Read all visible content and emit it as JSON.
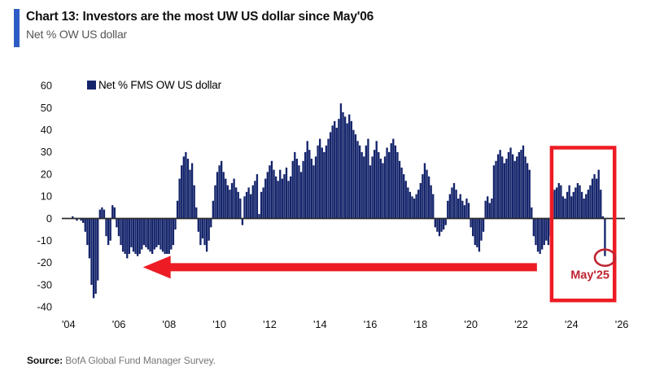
{
  "header": {
    "title": "Chart 13: Investors are the most UW US dollar since May'06",
    "subtitle": "Net % OW US dollar",
    "accent_color": "#2e5cc5"
  },
  "legend": {
    "label": "Net % FMS OW US dollar",
    "swatch_color": "#14246b"
  },
  "source": {
    "prefix": "Source:",
    "text": " BofA Global Fund Manager Survey."
  },
  "chart_data": {
    "type": "bar",
    "series_name": "Net % FMS OW US dollar",
    "frequency": "monthly",
    "start_month": "2004-01",
    "end_month": "2025-05",
    "ylim": [
      -40,
      60
    ],
    "y_ticks": [
      60,
      50,
      40,
      30,
      20,
      10,
      0,
      -10,
      -20,
      -30,
      -40
    ],
    "x_tick_labels": [
      "'04",
      "'06",
      "'08",
      "'10",
      "'12",
      "'14",
      "'16",
      "'18",
      "'20",
      "'22",
      "'24",
      "'26"
    ],
    "bar_color": "#14246b",
    "axis_line_color": "#2b2b2b",
    "values": [
      0,
      0,
      1,
      0,
      -1,
      0,
      -1,
      -2,
      -6,
      -12,
      -18,
      -30,
      -36,
      -34,
      -28,
      4,
      5,
      4,
      -8,
      -12,
      -10,
      6,
      5,
      -4,
      -8,
      -12,
      -15,
      -16,
      -18,
      -16,
      -13,
      -15,
      -16,
      -17,
      -16,
      -14,
      -12,
      -13,
      -14,
      -15,
      -16,
      -14,
      -13,
      -12,
      -14,
      -15,
      -16,
      -16,
      -16,
      -14,
      -12,
      -5,
      8,
      18,
      24,
      28,
      30,
      27,
      22,
      25,
      15,
      5,
      -6,
      -12,
      -9,
      -12,
      -15,
      -10,
      -4,
      8,
      15,
      21,
      24,
      26,
      21,
      18,
      15,
      13,
      16,
      18,
      14,
      12,
      9,
      -3,
      10,
      12,
      14,
      11,
      15,
      17,
      20,
      2,
      12,
      14,
      18,
      21,
      24,
      26,
      22,
      19,
      17,
      22,
      18,
      20,
      23,
      17,
      19,
      26,
      30,
      27,
      24,
      21,
      26,
      30,
      35,
      31,
      27,
      24,
      28,
      33,
      36,
      32,
      30,
      33,
      36,
      39,
      42,
      44,
      41,
      45,
      52,
      48,
      46,
      43,
      47,
      44,
      40,
      38,
      35,
      33,
      30,
      28,
      33,
      36,
      24,
      28,
      31,
      35,
      30,
      27,
      25,
      28,
      32,
      30,
      34,
      36,
      33,
      30,
      26,
      23,
      20,
      17,
      14,
      12,
      10,
      9,
      11,
      13,
      16,
      20,
      25,
      22,
      19,
      15,
      11,
      -4,
      -6,
      -8,
      -6,
      -5,
      -3,
      8,
      11,
      14,
      16,
      13,
      9,
      11,
      8,
      6,
      9,
      7,
      -4,
      -8,
      -12,
      -13,
      -15,
      -10,
      -6,
      8,
      10,
      7,
      9,
      24,
      26,
      29,
      31,
      28,
      25,
      27,
      30,
      32,
      29,
      26,
      28,
      30,
      31,
      33,
      28,
      25,
      22,
      5,
      -8,
      -12,
      -15,
      -16,
      -14,
      -12,
      -10,
      -12,
      -8,
      12,
      13,
      14,
      16,
      15,
      10,
      9,
      12,
      15,
      10,
      12,
      14,
      16,
      15,
      12,
      9,
      11,
      13,
      15,
      18,
      20,
      18,
      22,
      13,
      1,
      -17
    ],
    "annotations": {
      "arrow": {
        "color": "#ed1c24",
        "direction": "left",
        "y_value": -22,
        "tip_month_index": 36,
        "tail_month_index": 224
      },
      "highlight_box": {
        "color": "#ed1c24",
        "start_month_index": 231,
        "end_month_index": 261,
        "y_top_value": 32,
        "y_bottom_value": -37
      },
      "callout": {
        "color": "#bf2430",
        "label": "May'25",
        "month_index": 256,
        "y_value": -17
      }
    }
  }
}
